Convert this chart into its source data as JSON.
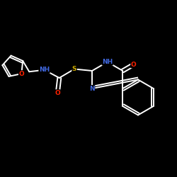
{
  "background_color": "#000000",
  "bond_color": "#ffffff",
  "atom_colors": {
    "O": "#ff2200",
    "N": "#4169e1",
    "S": "#ccaa00",
    "C": "#ffffff",
    "H": "#ffffff"
  },
  "figsize": [
    2.5,
    2.5
  ],
  "dpi": 100
}
